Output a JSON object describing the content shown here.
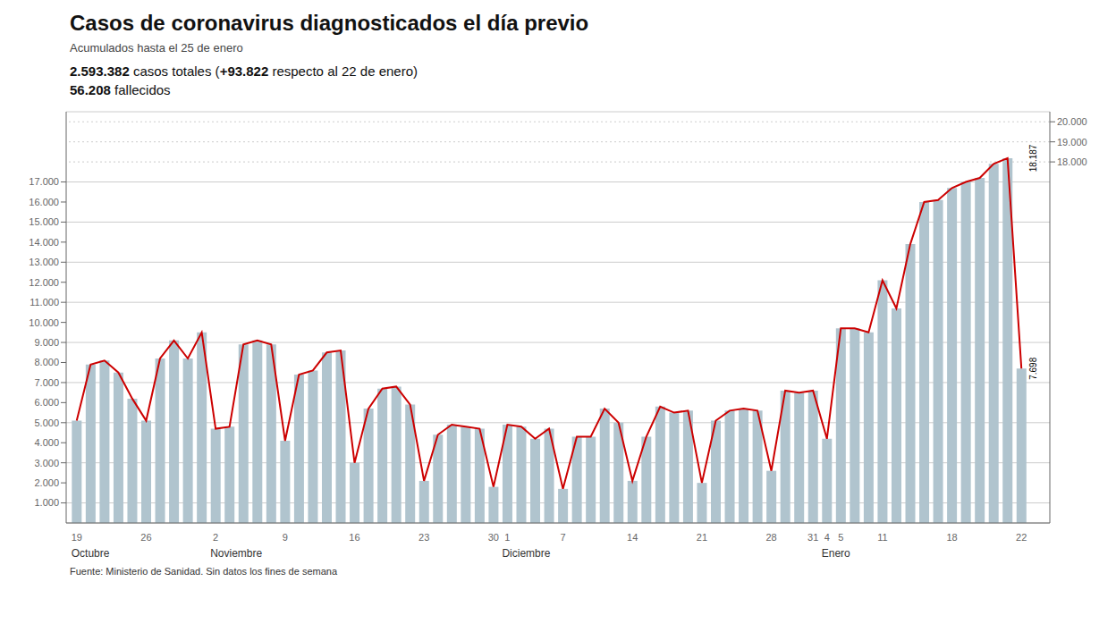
{
  "chart_data": {
    "type": "bar",
    "title": "Casos de coronavirus diagnosticados el día previo",
    "subtitle": "Acumulados hasta el 25 de enero",
    "source": "Fuente: Ministerio de Sanidad. Sin datos los fines de semana",
    "annotations": [
      {
        "text": "2.593.382 casos totales (+93.822 respecto al 22 de enero)"
      },
      {
        "text": "56.208 fallecidos"
      },
      {
        "text": "Octubre",
        "x": 0
      },
      {
        "text": "Noviembre",
        "x": 10
      },
      {
        "text": "Diciembre",
        "x": 31
      },
      {
        "text": "Enero",
        "x": 54
      },
      {
        "text": "18.187",
        "y": 18187
      },
      {
        "text": "7.698",
        "y": 7698
      }
    ],
    "categories": [
      "19",
      null,
      null,
      null,
      null,
      "26",
      null,
      null,
      null,
      null,
      "2",
      null,
      null,
      null,
      null,
      "9",
      null,
      null,
      null,
      null,
      "16",
      null,
      null,
      null,
      null,
      "23",
      null,
      null,
      null,
      null,
      "30",
      "1",
      null,
      null,
      null,
      "7",
      null,
      null,
      null,
      null,
      "14",
      null,
      null,
      null,
      null,
      "21",
      null,
      null,
      null,
      null,
      "28",
      null,
      null,
      "31",
      "4",
      "5",
      null,
      null,
      "11",
      null,
      null,
      null,
      null,
      "18",
      null,
      null,
      null,
      null,
      "22"
    ],
    "series": [
      {
        "type": "bar",
        "color": "#b0c4ce",
        "values": [
          5100,
          7900,
          8100,
          7500,
          6200,
          5100,
          8200,
          9100,
          8200,
          9500,
          4700,
          4800,
          8900,
          9100,
          8900,
          4100,
          7400,
          7600,
          8500,
          8600,
          3000,
          5700,
          6700,
          6800,
          5900,
          2100,
          4400,
          4900,
          4800,
          4700,
          1800,
          4900,
          4800,
          4200,
          4700,
          1700,
          4300,
          4300,
          5700,
          5000,
          2100,
          4300,
          5800,
          5500,
          5600,
          2000,
          5100,
          5600,
          5700,
          5600,
          2600,
          6600,
          6500,
          6600,
          4200,
          9700,
          9700,
          9500,
          12100,
          10700,
          13900,
          16000,
          16100,
          16700,
          17000,
          17200,
          17900,
          18187,
          7698
        ]
      },
      {
        "type": "line",
        "color": "#cc0000",
        "values": [
          5100,
          7900,
          8100,
          7500,
          6200,
          5100,
          8200,
          9100,
          8200,
          9500,
          4700,
          4800,
          8900,
          9100,
          8900,
          4100,
          7400,
          7600,
          8500,
          8600,
          3000,
          5700,
          6700,
          6800,
          5900,
          2100,
          4400,
          4900,
          4800,
          4700,
          1800,
          4900,
          4800,
          4200,
          4700,
          1700,
          4300,
          4300,
          5700,
          5000,
          2100,
          4300,
          5800,
          5500,
          5600,
          2000,
          5100,
          5600,
          5700,
          5600,
          2600,
          6600,
          6500,
          6600,
          4200,
          9700,
          9700,
          9500,
          12100,
          10700,
          13900,
          16000,
          16100,
          16700,
          17000,
          17200,
          17900,
          18187,
          7698
        ]
      }
    ],
    "ylim": [
      0,
      20500
    ],
    "yticks": [
      {
        "value": 1000,
        "label": "1.000"
      },
      {
        "value": 2000,
        "label": "2.000"
      },
      {
        "value": 3000,
        "label": "3.000"
      },
      {
        "value": 4000,
        "label": "4.000"
      },
      {
        "value": 5000,
        "label": "5.000"
      },
      {
        "value": 6000,
        "label": "6.000"
      },
      {
        "value": 7000,
        "label": "7.000"
      },
      {
        "value": 8000,
        "label": "8.000"
      },
      {
        "value": 9000,
        "label": "9.000"
      },
      {
        "value": 10000,
        "label": "10.000"
      },
      {
        "value": 11000,
        "label": "11.000"
      },
      {
        "value": 12000,
        "label": "12.000"
      },
      {
        "value": 13000,
        "label": "13.000"
      },
      {
        "value": 14000,
        "label": "14.000"
      },
      {
        "value": 15000,
        "label": "15.000"
      },
      {
        "value": 16000,
        "label": "16.000"
      },
      {
        "value": 17000,
        "label": "17.000"
      }
    ],
    "y2lim": [
      0,
      20500
    ],
    "y2ticks": [
      {
        "value": 18000,
        "label": "18.000"
      },
      {
        "value": 19000,
        "label": "19.000"
      },
      {
        "value": 20000,
        "label": "20.000"
      }
    ],
    "grid": true
  }
}
